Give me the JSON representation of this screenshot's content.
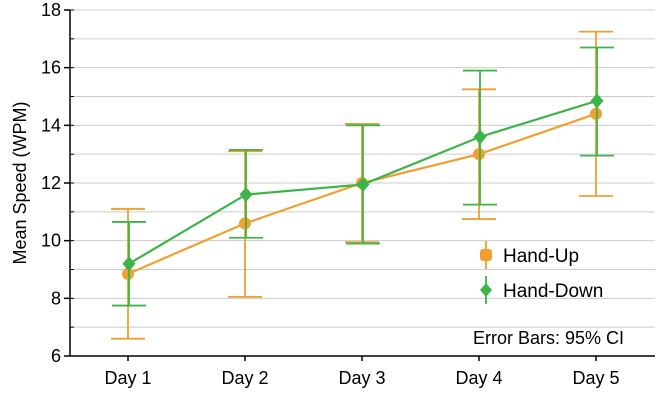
{
  "chart_data": {
    "type": "line",
    "title": "",
    "xlabel": "",
    "ylabel": "Mean Speed (WPM)",
    "categories": [
      "Day 1",
      "Day 2",
      "Day 3",
      "Day 4",
      "Day 5"
    ],
    "ylim": [
      6,
      18
    ],
    "yticks": [
      "6",
      "8",
      "10",
      "12",
      "14",
      "16",
      "18"
    ],
    "grid": "horizontal",
    "legend_position": "right",
    "series": [
      {
        "name": "Hand-Up",
        "color": "#f0a030",
        "marker": "circle",
        "values": [
          8.85,
          10.6,
          12.0,
          13.0,
          14.4
        ],
        "ci_low": [
          6.6,
          8.05,
          9.95,
          10.75,
          11.55
        ],
        "ci_high": [
          11.1,
          13.1,
          14.05,
          15.25,
          17.25
        ]
      },
      {
        "name": "Hand-Down",
        "color": "#3cb44a",
        "marker": "diamond",
        "values": [
          9.2,
          11.6,
          11.95,
          13.6,
          14.85
        ],
        "ci_low": [
          7.75,
          10.1,
          9.9,
          11.25,
          12.95
        ],
        "ci_high": [
          10.65,
          13.15,
          14.0,
          15.9,
          16.7
        ]
      }
    ],
    "annotation": "Error Bars: 95% CI"
  }
}
